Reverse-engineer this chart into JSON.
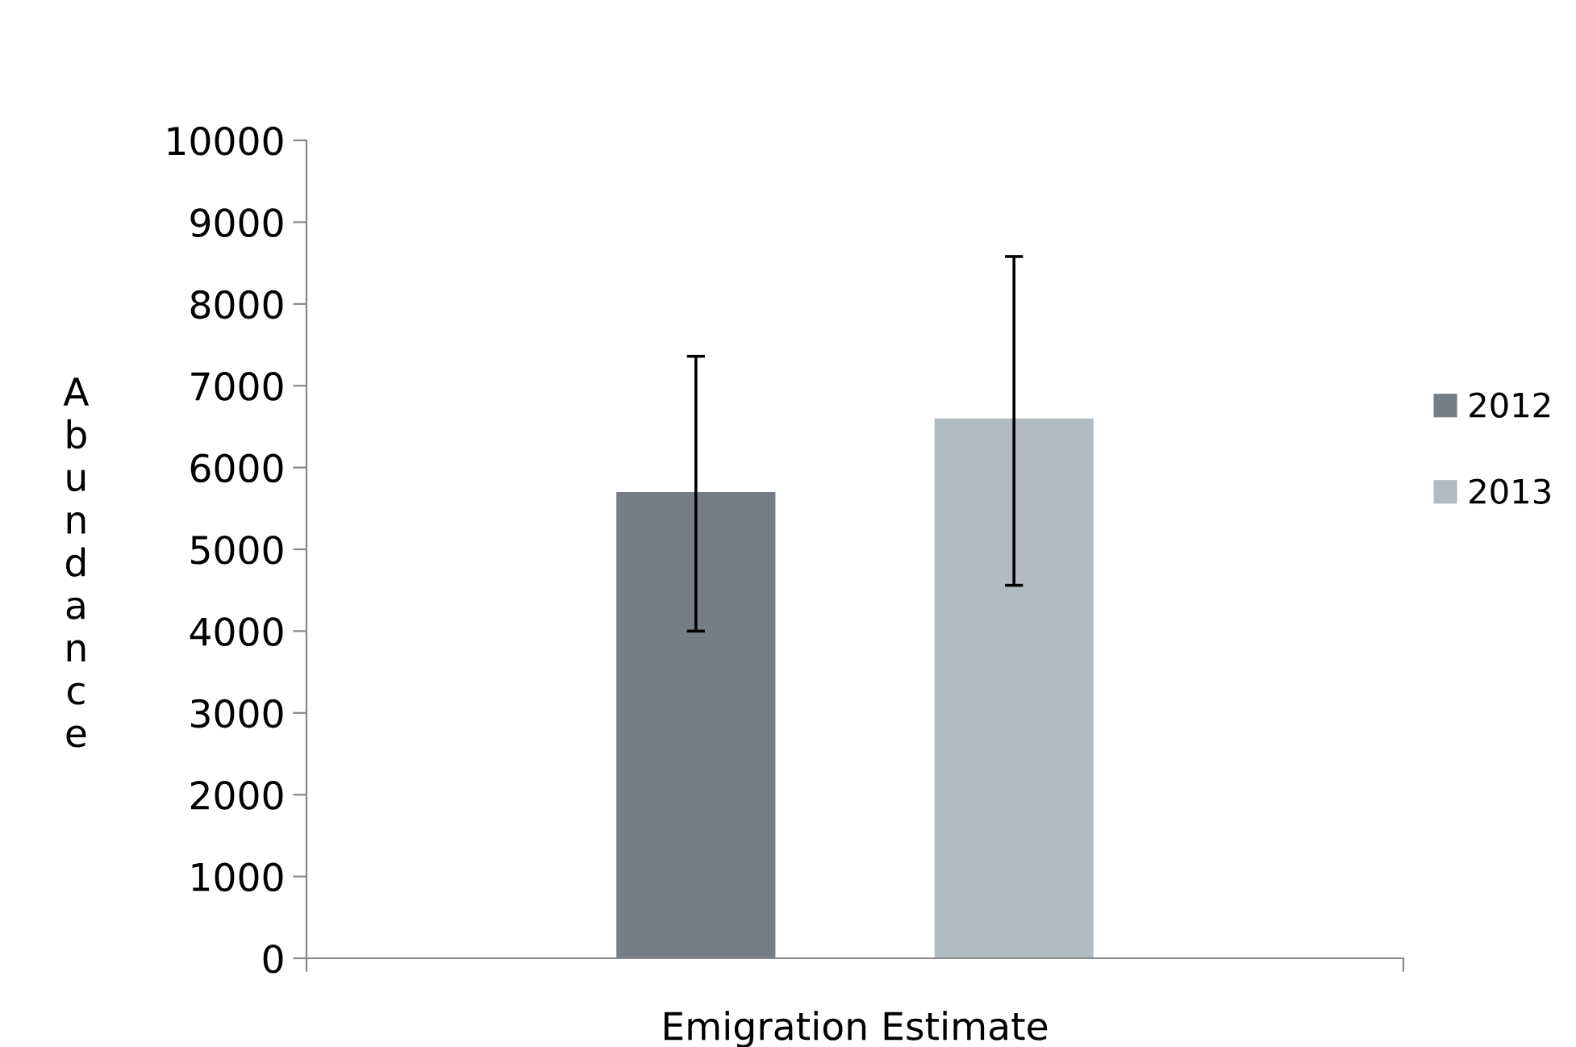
{
  "chart_data": {
    "type": "bar",
    "xlabel": "Emigration Estimate",
    "ylabel": "Abundance",
    "categories": [
      null
    ],
    "series": [
      {
        "name": "2012",
        "color": "#767d84",
        "values": [
          5700
        ],
        "errors": [
          [
            4000,
            7360
          ]
        ]
      },
      {
        "name": "2013",
        "color": "#b1bcc1",
        "values": [
          6600
        ],
        "errors": [
          [
            4560,
            8580
          ]
        ]
      }
    ],
    "ylim": [
      0,
      10000
    ],
    "yticks": [
      0,
      1000,
      2000,
      3000,
      4000,
      5000,
      6000,
      7000,
      8000,
      9000,
      10000
    ],
    "grid": false,
    "legend": "right"
  }
}
